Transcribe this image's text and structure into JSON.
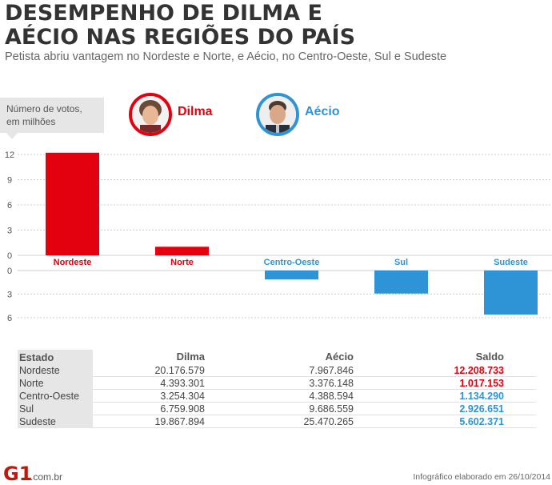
{
  "header": {
    "title_line1": "DESEMPENHO DE DILMA E",
    "title_line2": "AÉCIO NAS REGIÕES DO PAÍS",
    "subtitle": "Petista abriu vantagem no Nordeste e Norte, e Aécio, no Centro-Oeste, Sul e Sudeste"
  },
  "unit_label_line1": "Número de votos,",
  "unit_label_line2": "em milhões",
  "legend": {
    "dilma": {
      "name": "Dilma",
      "color": "#e3000f"
    },
    "aecio": {
      "name": "Aécio",
      "color": "#2e94d6"
    }
  },
  "chart_data": {
    "type": "bar",
    "categories": [
      "Nordeste",
      "Norte",
      "Centro-Oeste",
      "Sul",
      "Sudeste"
    ],
    "values": [
      12.208733,
      1.017153,
      -1.13429,
      -2.926651,
      -5.602371
    ],
    "leader": [
      "dilma",
      "dilma",
      "aecio",
      "aecio",
      "aecio"
    ],
    "ylabel": "Número de votos, em milhões",
    "upper_ticks": [
      0,
      3,
      6,
      9,
      12
    ],
    "lower_ticks": [
      0,
      3,
      6
    ],
    "ylim_upper": [
      0,
      12
    ],
    "ylim_lower": [
      0,
      6
    ],
    "grid": true
  },
  "table": {
    "headers": {
      "estado": "Estado",
      "dilma": "Dilma",
      "aecio": "Aécio",
      "saldo": "Saldo"
    },
    "rows": [
      {
        "estado": "Nordeste",
        "dilma": "20.176.579",
        "aecio": "7.967.846",
        "saldo": "12.208.733",
        "winner": "dilma"
      },
      {
        "estado": "Norte",
        "dilma": "4.393.301",
        "aecio": "3.376.148",
        "saldo": "1.017.153",
        "winner": "dilma"
      },
      {
        "estado": "Centro-Oeste",
        "dilma": "3.254.304",
        "aecio": "4.388.594",
        "saldo": "1.134.290",
        "winner": "aecio"
      },
      {
        "estado": "Sul",
        "dilma": "6.759.908",
        "aecio": "9.686.559",
        "saldo": "2.926.651",
        "winner": "aecio"
      },
      {
        "estado": "Sudeste",
        "dilma": "19.867.894",
        "aecio": "25.470.265",
        "saldo": "5.602.371",
        "winner": "aecio"
      }
    ]
  },
  "footer": {
    "logo": "G1",
    "logo_suffix": ".com.br",
    "credit": "Infográfico elaborado em 26/10/2014"
  }
}
